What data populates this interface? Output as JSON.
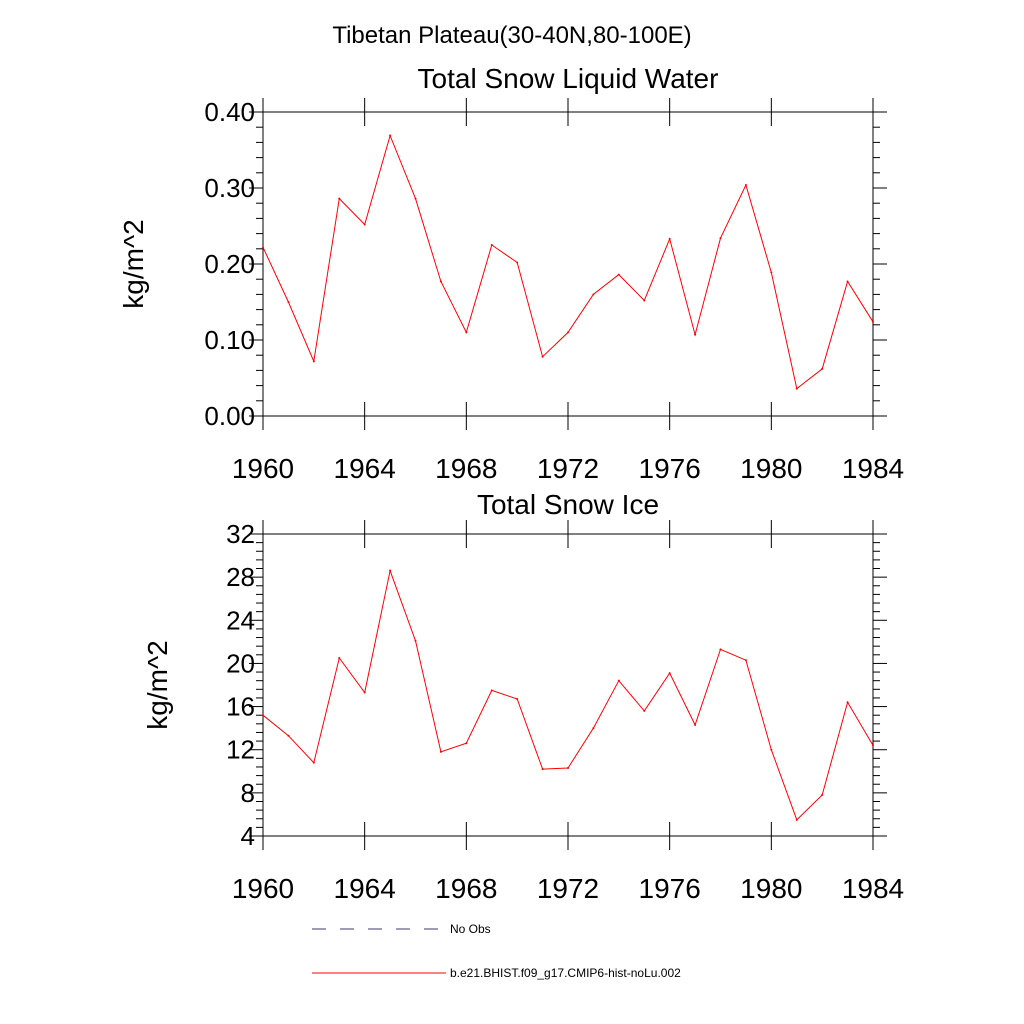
{
  "page_title": "Tibetan Plateau(30-40N,80-100E)",
  "chart_data": [
    {
      "type": "line",
      "title": "Total Snow Liquid Water",
      "xlabel": "",
      "ylabel": "kg/m^2",
      "xlim": [
        1960,
        1984
      ],
      "ylim": [
        0.0,
        0.4
      ],
      "x_ticks": [
        1960,
        1964,
        1968,
        1972,
        1976,
        1980,
        1984
      ],
      "y_ticks": [
        "0.00",
        "0.10",
        "0.20",
        "0.30",
        "0.40"
      ],
      "y_tick_values": [
        0.0,
        0.1,
        0.2,
        0.3,
        0.4
      ],
      "grid": false,
      "series": [
        {
          "name": "b.e21.BHIST.f09_g17.CMIP6-hist-noLu.002",
          "color": "#ff0000",
          "x": [
            1960,
            1961,
            1962,
            1963,
            1964,
            1965,
            1966,
            1967,
            1968,
            1969,
            1970,
            1971,
            1972,
            1973,
            1974,
            1975,
            1976,
            1977,
            1978,
            1979,
            1980,
            1981,
            1982,
            1983,
            1984
          ],
          "values": [
            0.222,
            0.15,
            0.072,
            0.286,
            0.252,
            0.369,
            0.286,
            0.177,
            0.11,
            0.225,
            0.202,
            0.078,
            0.11,
            0.16,
            0.186,
            0.152,
            0.233,
            0.107,
            0.234,
            0.304,
            0.189,
            0.036,
            0.062,
            0.177,
            0.124
          ]
        }
      ]
    },
    {
      "type": "line",
      "title": "Total Snow Ice",
      "xlabel": "",
      "ylabel": "kg/m^2",
      "xlim": [
        1960,
        1984
      ],
      "ylim": [
        4,
        32
      ],
      "x_ticks": [
        1960,
        1964,
        1968,
        1972,
        1976,
        1980,
        1984
      ],
      "y_ticks": [
        "4",
        "8",
        "12",
        "16",
        "20",
        "24",
        "28",
        "32"
      ],
      "y_tick_values": [
        4,
        8,
        12,
        16,
        20,
        24,
        28,
        32
      ],
      "grid": false,
      "series": [
        {
          "name": "b.e21.BHIST.f09_g17.CMIP6-hist-noLu.002",
          "color": "#ff0000",
          "x": [
            1960,
            1961,
            1962,
            1963,
            1964,
            1965,
            1966,
            1967,
            1968,
            1969,
            1970,
            1971,
            1972,
            1973,
            1974,
            1975,
            1976,
            1977,
            1978,
            1979,
            1980,
            1981,
            1982,
            1983,
            1984
          ],
          "values": [
            15.2,
            13.3,
            10.8,
            20.5,
            17.3,
            28.6,
            22.1,
            11.8,
            12.6,
            17.5,
            16.7,
            10.2,
            10.3,
            14.0,
            18.4,
            15.6,
            19.1,
            14.3,
            21.3,
            20.3,
            12.0,
            5.5,
            7.8,
            16.4,
            12.4
          ]
        }
      ]
    }
  ],
  "legend": {
    "placement": "bottom",
    "items": [
      {
        "label": "No Obs",
        "color": "#3b3b6b",
        "style": "dashed"
      },
      {
        "label": "b.e21.BHIST.f09_g17.CMIP6-hist-noLu.002",
        "color": "#ff0000",
        "style": "solid"
      }
    ]
  }
}
